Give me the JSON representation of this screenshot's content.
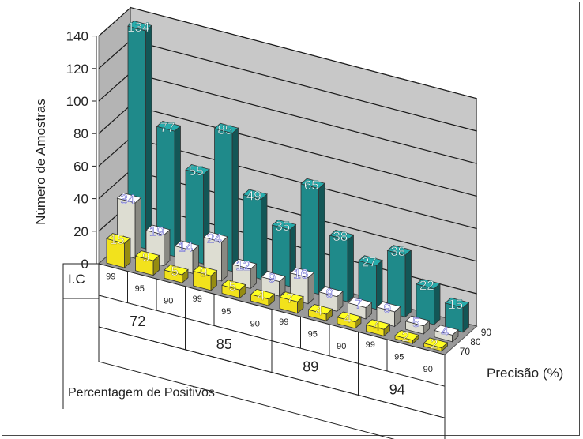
{
  "chart_data": {
    "type": "bar",
    "title": "",
    "ylabel": "Número de Amostras",
    "xlabel": "Percentagem de Positivos",
    "zlabel": "Precisão (%)",
    "ic_label": "I.C",
    "ylim": [
      0,
      140
    ],
    "yticks": [
      "0",
      "20",
      "40",
      "60",
      "80",
      "100",
      "120",
      "140"
    ],
    "groups": [
      "72",
      "85",
      "89",
      "94"
    ],
    "ic_levels": [
      "99",
      "95",
      "90"
    ],
    "series": [
      {
        "name": "70",
        "color": "#f2e21c",
        "values": [
          15,
          9,
          5,
          9,
          5,
          4,
          7,
          4,
          4,
          4,
          2,
          2
        ]
      },
      {
        "name": "80",
        "color": "#ddddd2",
        "values": [
          34,
          19,
          14,
          24,
          12,
          9,
          16,
          9,
          7,
          9,
          5,
          4
        ]
      },
      {
        "name": "90",
        "color": "#1f8a8a",
        "values": [
          134,
          77,
          55,
          85,
          49,
          35,
          65,
          38,
          27,
          38,
          22,
          15
        ]
      }
    ],
    "grid": true,
    "legend": "none"
  }
}
